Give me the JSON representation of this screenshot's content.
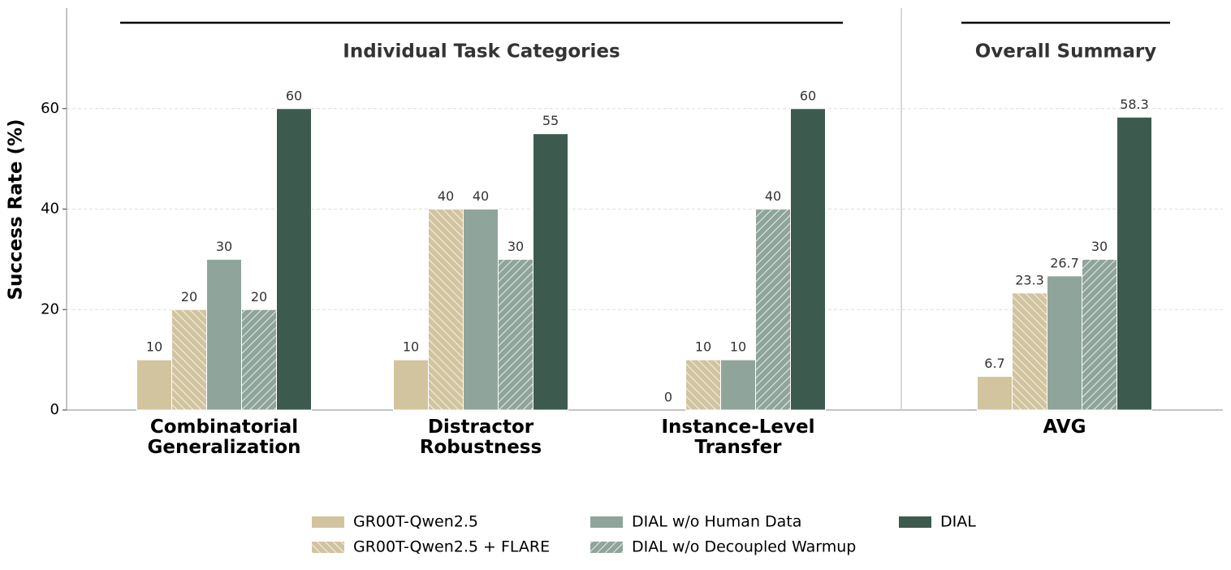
{
  "chart_data": {
    "type": "bar",
    "ylabel": "Success Rate (%)",
    "sections": [
      {
        "title": "Individual Task Categories"
      },
      {
        "title": "Overall Summary"
      }
    ],
    "categories": [
      "Combinatorial\nGeneralization",
      "Distractor\nRobustness",
      "Instance-Level\nTransfer",
      "AVG"
    ],
    "series": [
      {
        "name": "GR00T-Qwen2.5",
        "color": "#d2c49e",
        "hatch": null,
        "values": [
          10,
          10,
          0,
          6.7
        ]
      },
      {
        "name": "GR00T-Qwen2.5 + FLARE",
        "color": "#d2c49e",
        "hatch": "backslash",
        "values": [
          20,
          40,
          10,
          23.3
        ]
      },
      {
        "name": "DIAL w/o Human Data",
        "color": "#8fa59b",
        "hatch": null,
        "values": [
          30,
          40,
          10,
          26.7
        ]
      },
      {
        "name": "DIAL w/o Decoupled Warmup",
        "color": "#8fa59b",
        "hatch": "slash",
        "values": [
          20,
          30,
          40,
          30
        ]
      },
      {
        "name": "DIAL",
        "color": "#3d5a4f",
        "hatch": null,
        "values": [
          60,
          55,
          60,
          58.3
        ]
      }
    ],
    "ylim": [
      0,
      80
    ],
    "yticks": [
      0,
      20,
      40,
      60
    ],
    "grid": true,
    "legend": "bottom"
  }
}
